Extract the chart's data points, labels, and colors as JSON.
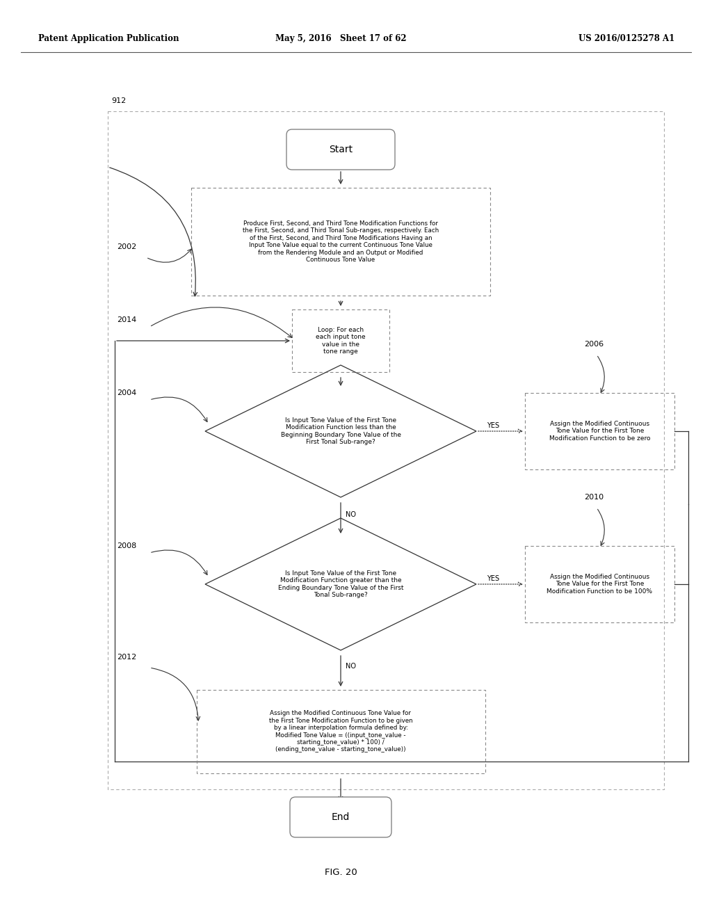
{
  "header_left": "Patent Application Publication",
  "header_mid": "May 5, 2016   Sheet 17 of 62",
  "header_right": "US 2016/0125278 A1",
  "fig_label": "FIG. 20",
  "start_text": "Start",
  "end_text": "End",
  "label_912": "912",
  "label_2002": "2002",
  "label_2014": "2014",
  "label_2004": "2004",
  "label_2006": "2006",
  "label_2008": "2008",
  "label_2010": "2010",
  "label_2012": "2012",
  "yes_text": "YES",
  "no_text": "NO",
  "box2002_text": "Produce First, Second, and Third Tone Modification Functions for\nthe First, Second, and Third Tonal Sub-ranges, respectively. Each\nof the First, Second, and Third Tone Modifications Having an\nInput Tone Value equal to the current Continuous Tone Value\nfrom the Rendering Module and an Output or Modified\nContinuous Tone Value",
  "loop_text": "Loop: For each\neach input tone\nvalue in the\ntone range",
  "diamond1_text": "Is Input Tone Value of the First Tone\nModification Function less than the\nBeginning Boundary Tone Value of the\nFirst Tonal Sub-range?",
  "box2006_text": "Assign the Modified Continuous\nTone Value for the First Tone\nModification Function to be zero",
  "diamond2_text": "Is Input Tone Value of the First Tone\nModification Function greater than the\nEnding Boundary Tone Value of the First\nTonal Sub-range?",
  "box2010_text": "Assign the Modified Continuous\nTone Value for the First Tone\nModification Function to be 100%",
  "box2012_text": "Assign the Modified Continuous Tone Value for\nthe First Tone Modification Function to be given\nby a linear interpolation formula defined by:\nModified Tone Value = ((input_tone_value -\nstarting_tone_value) * 100) /\n(ending_tone_value - starting_tone_value))",
  "bg_color": "#ffffff",
  "text_color": "#000000",
  "edge_color": "#555555",
  "dash_color": "#888888",
  "line_color": "#333333"
}
